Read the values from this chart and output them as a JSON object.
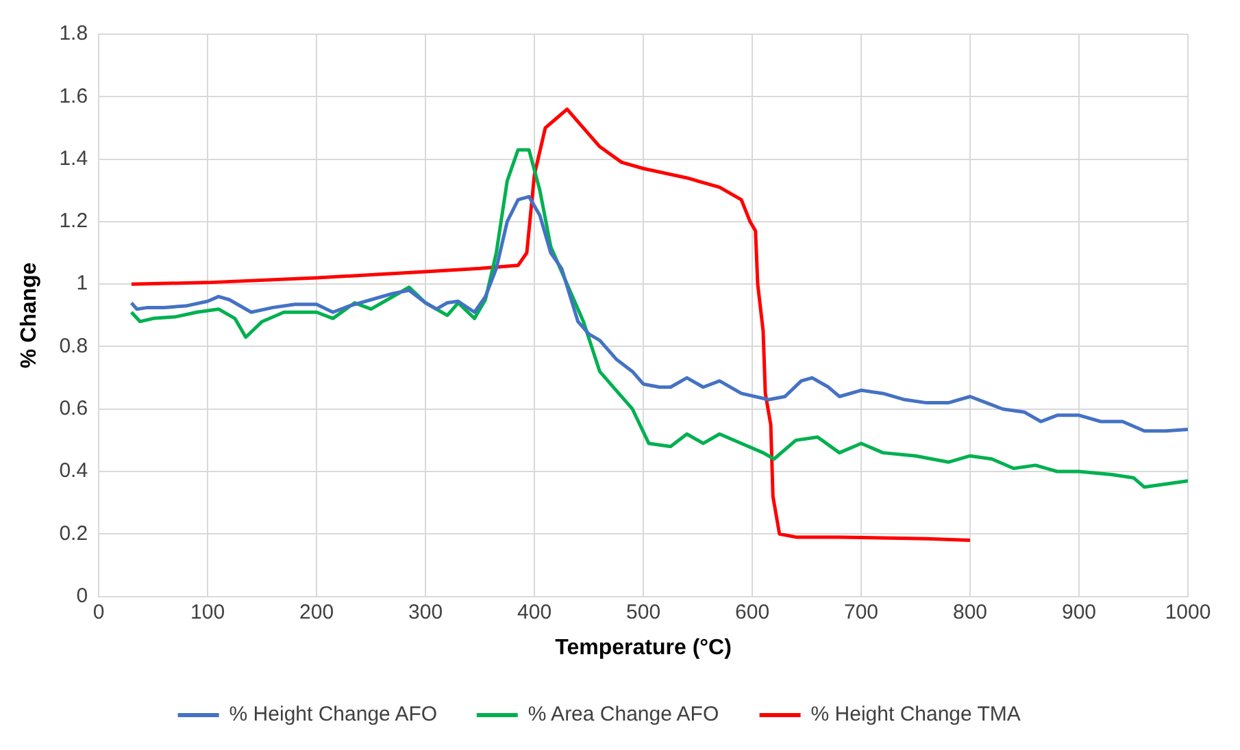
{
  "chart_data": {
    "type": "line",
    "xlabel": "Temperature (°C)",
    "ylabel": "% Change",
    "xlim": [
      0,
      1000
    ],
    "xticks": [
      0,
      100,
      200,
      300,
      400,
      500,
      600,
      700,
      800,
      900,
      1000
    ],
    "ylim": [
      0,
      1.8
    ],
    "yticks": [
      0,
      0.2,
      0.4,
      0.6,
      0.8,
      1,
      1.2,
      1.4,
      1.6,
      1.8
    ],
    "grid": true,
    "legend": "bottom",
    "marker": "none",
    "line_style": "solid",
    "series": [
      {
        "name": "% Height Change AFO",
        "color": "#4472c4",
        "x": [
          30,
          35,
          45,
          60,
          80,
          100,
          110,
          120,
          140,
          160,
          180,
          200,
          215,
          230,
          250,
          270,
          285,
          300,
          310,
          320,
          330,
          345,
          355,
          365,
          375,
          385,
          395,
          405,
          415,
          425,
          440,
          450,
          460,
          475,
          490,
          500,
          515,
          525,
          540,
          555,
          570,
          590,
          615,
          630,
          645,
          655,
          670,
          680,
          700,
          720,
          740,
          760,
          780,
          800,
          815,
          830,
          850,
          865,
          880,
          900,
          920,
          940,
          960,
          980,
          1000
        ],
        "values": [
          0.94,
          0.92,
          0.925,
          0.925,
          0.93,
          0.945,
          0.96,
          0.95,
          0.91,
          0.925,
          0.935,
          0.935,
          0.91,
          0.93,
          0.95,
          0.97,
          0.98,
          0.94,
          0.92,
          0.94,
          0.945,
          0.91,
          0.96,
          1.05,
          1.2,
          1.27,
          1.28,
          1.22,
          1.1,
          1.05,
          0.88,
          0.84,
          0.82,
          0.76,
          0.72,
          0.68,
          0.67,
          0.67,
          0.7,
          0.67,
          0.69,
          0.65,
          0.63,
          0.64,
          0.69,
          0.7,
          0.67,
          0.64,
          0.66,
          0.65,
          0.63,
          0.62,
          0.62,
          0.64,
          0.62,
          0.6,
          0.59,
          0.56,
          0.58,
          0.58,
          0.56,
          0.56,
          0.53,
          0.53,
          0.535
        ]
      },
      {
        "name": "% Area Change AFO",
        "color": "#00b050",
        "x": [
          30,
          38,
          50,
          70,
          90,
          110,
          125,
          135,
          150,
          170,
          200,
          215,
          235,
          250,
          265,
          285,
          300,
          320,
          330,
          345,
          355,
          365,
          375,
          385,
          395,
          405,
          415,
          430,
          445,
          460,
          475,
          490,
          505,
          525,
          540,
          555,
          570,
          590,
          610,
          620,
          640,
          660,
          680,
          700,
          720,
          750,
          780,
          800,
          820,
          840,
          860,
          880,
          900,
          930,
          950,
          960,
          980,
          1000
        ],
        "values": [
          0.91,
          0.88,
          0.89,
          0.895,
          0.91,
          0.92,
          0.89,
          0.83,
          0.88,
          0.91,
          0.91,
          0.89,
          0.94,
          0.92,
          0.95,
          0.99,
          0.94,
          0.9,
          0.94,
          0.89,
          0.95,
          1.1,
          1.33,
          1.43,
          1.43,
          1.3,
          1.12,
          1,
          0.88,
          0.72,
          0.66,
          0.6,
          0.49,
          0.48,
          0.52,
          0.49,
          0.52,
          0.49,
          0.46,
          0.44,
          0.5,
          0.51,
          0.46,
          0.49,
          0.46,
          0.45,
          0.43,
          0.45,
          0.44,
          0.41,
          0.42,
          0.4,
          0.4,
          0.39,
          0.38,
          0.35,
          0.36,
          0.37
        ]
      },
      {
        "name": "% Height Change TMA",
        "color": "#ff0000",
        "x": [
          30,
          100,
          200,
          300,
          350,
          385,
          393,
          400,
          410,
          420,
          430,
          440,
          460,
          480,
          500,
          540,
          570,
          590,
          598,
          603,
          605,
          610,
          612,
          617,
          619,
          625,
          640,
          680,
          760,
          800
        ],
        "values": [
          1,
          1.005,
          1.02,
          1.04,
          1.05,
          1.06,
          1.1,
          1.35,
          1.5,
          1.53,
          1.56,
          1.52,
          1.44,
          1.39,
          1.37,
          1.34,
          1.31,
          1.27,
          1.2,
          1.17,
          1,
          0.85,
          0.65,
          0.55,
          0.32,
          0.2,
          0.19,
          0.19,
          0.185,
          0.18
        ]
      }
    ]
  }
}
